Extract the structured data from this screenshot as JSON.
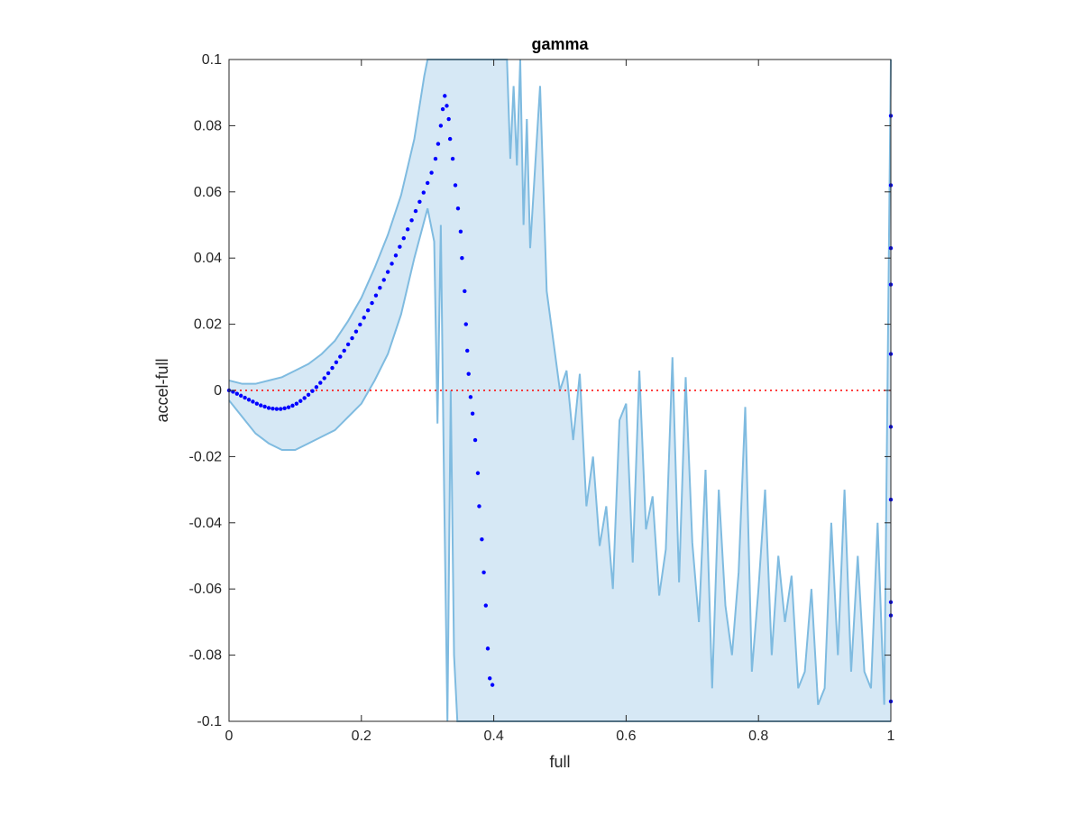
{
  "chart_data": {
    "type": "scatter",
    "title": "gamma",
    "xlabel": "full",
    "ylabel": "accel-full",
    "xlim": [
      0,
      1
    ],
    "ylim": [
      -0.1,
      0.1
    ],
    "x_ticks": [
      0,
      0.2,
      0.4,
      0.6,
      0.8,
      1
    ],
    "x_tick_labels": [
      "0",
      "0.2",
      "0.4",
      "0.6",
      "0.8",
      "1"
    ],
    "y_ticks": [
      -0.1,
      -0.08,
      -0.06,
      -0.04,
      -0.02,
      0,
      0.02,
      0.04,
      0.06,
      0.08,
      0.1
    ],
    "y_tick_labels": [
      "-0.1",
      "-0.08",
      "-0.06",
      "-0.04",
      "-0.02",
      "0",
      "0.02",
      "0.04",
      "0.06",
      "0.08",
      "0.1"
    ],
    "grid": false,
    "reference_line": {
      "y": 0,
      "style": "dotted",
      "color": "#ff0000"
    },
    "colors": {
      "points": "#0000ff",
      "band_line": "#7fbbe0",
      "band_fill": "#d6e8f5"
    },
    "mean_points": [
      [
        0.0,
        0.0
      ],
      [
        0.006,
        -0.0004
      ],
      [
        0.012,
        -0.001
      ],
      [
        0.018,
        -0.0016
      ],
      [
        0.024,
        -0.0022
      ],
      [
        0.03,
        -0.0028
      ],
      [
        0.036,
        -0.0034
      ],
      [
        0.042,
        -0.004
      ],
      [
        0.048,
        -0.0045
      ],
      [
        0.054,
        -0.0049
      ],
      [
        0.06,
        -0.0053
      ],
      [
        0.066,
        -0.0055
      ],
      [
        0.072,
        -0.0056
      ],
      [
        0.078,
        -0.0056
      ],
      [
        0.084,
        -0.0054
      ],
      [
        0.09,
        -0.0051
      ],
      [
        0.096,
        -0.0046
      ],
      [
        0.102,
        -0.004
      ],
      [
        0.108,
        -0.0032
      ],
      [
        0.114,
        -0.0023
      ],
      [
        0.12,
        -0.0013
      ],
      [
        0.126,
        -0.0002
      ],
      [
        0.132,
        0.001
      ],
      [
        0.138,
        0.0023
      ],
      [
        0.144,
        0.0037
      ],
      [
        0.15,
        0.0052
      ],
      [
        0.156,
        0.0068
      ],
      [
        0.162,
        0.0085
      ],
      [
        0.168,
        0.0102
      ],
      [
        0.174,
        0.012
      ],
      [
        0.18,
        0.0139
      ],
      [
        0.186,
        0.0158
      ],
      [
        0.192,
        0.0178
      ],
      [
        0.198,
        0.0199
      ],
      [
        0.204,
        0.022
      ],
      [
        0.21,
        0.0242
      ],
      [
        0.216,
        0.0264
      ],
      [
        0.222,
        0.0287
      ],
      [
        0.228,
        0.031
      ],
      [
        0.234,
        0.0334
      ],
      [
        0.24,
        0.0358
      ],
      [
        0.246,
        0.0383
      ],
      [
        0.252,
        0.0408
      ],
      [
        0.258,
        0.0434
      ],
      [
        0.264,
        0.046
      ],
      [
        0.27,
        0.0487
      ],
      [
        0.276,
        0.0514
      ],
      [
        0.282,
        0.0542
      ],
      [
        0.288,
        0.057
      ],
      [
        0.294,
        0.0598
      ],
      [
        0.3,
        0.0627
      ],
      [
        0.306,
        0.0658
      ],
      [
        0.312,
        0.07
      ],
      [
        0.316,
        0.0745
      ],
      [
        0.32,
        0.08
      ],
      [
        0.323,
        0.085
      ],
      [
        0.326,
        0.089
      ],
      [
        0.329,
        0.086
      ],
      [
        0.332,
        0.082
      ],
      [
        0.334,
        0.076
      ],
      [
        0.338,
        0.07
      ],
      [
        0.342,
        0.062
      ],
      [
        0.346,
        0.055
      ],
      [
        0.35,
        0.048
      ],
      [
        0.352,
        0.04
      ],
      [
        0.356,
        0.03
      ],
      [
        0.358,
        0.02
      ],
      [
        0.36,
        0.012
      ],
      [
        0.362,
        0.005
      ],
      [
        0.365,
        -0.002
      ],
      [
        0.368,
        -0.007
      ],
      [
        0.372,
        -0.015
      ],
      [
        0.376,
        -0.025
      ],
      [
        0.378,
        -0.035
      ],
      [
        0.382,
        -0.045
      ],
      [
        0.385,
        -0.055
      ],
      [
        0.388,
        -0.065
      ],
      [
        0.391,
        -0.078
      ],
      [
        0.394,
        -0.087
      ],
      [
        0.398,
        -0.089
      ],
      [
        1.0,
        0.083
      ],
      [
        1.0,
        0.062
      ],
      [
        1.0,
        0.043
      ],
      [
        1.0,
        0.032
      ],
      [
        1.0,
        0.011
      ],
      [
        1.0,
        -0.011
      ],
      [
        1.0,
        -0.033
      ],
      [
        1.0,
        -0.064
      ],
      [
        1.0,
        -0.068
      ],
      [
        1.0,
        -0.094
      ]
    ],
    "band_upper": [
      [
        0.0,
        0.003
      ],
      [
        0.02,
        0.002
      ],
      [
        0.04,
        0.002
      ],
      [
        0.06,
        0.003
      ],
      [
        0.08,
        0.004
      ],
      [
        0.1,
        0.006
      ],
      [
        0.12,
        0.008
      ],
      [
        0.14,
        0.011
      ],
      [
        0.16,
        0.015
      ],
      [
        0.18,
        0.021
      ],
      [
        0.2,
        0.028
      ],
      [
        0.22,
        0.037
      ],
      [
        0.24,
        0.047
      ],
      [
        0.26,
        0.059
      ],
      [
        0.28,
        0.076
      ],
      [
        0.295,
        0.095
      ],
      [
        0.3,
        0.1
      ],
      [
        0.42,
        0.1
      ],
      [
        0.425,
        0.07
      ],
      [
        0.43,
        0.092
      ],
      [
        0.435,
        0.068
      ],
      [
        0.44,
        0.1
      ],
      [
        0.445,
        0.05
      ],
      [
        0.45,
        0.082
      ],
      [
        0.455,
        0.043
      ],
      [
        0.47,
        0.092
      ],
      [
        0.48,
        0.03
      ],
      [
        0.49,
        0.015
      ],
      [
        0.5,
        0.0
      ],
      [
        0.51,
        0.006
      ],
      [
        0.52,
        -0.015
      ],
      [
        0.53,
        0.005
      ],
      [
        0.54,
        -0.035
      ],
      [
        0.55,
        -0.02
      ],
      [
        0.56,
        -0.047
      ],
      [
        0.57,
        -0.035
      ],
      [
        0.58,
        -0.06
      ],
      [
        0.59,
        -0.009
      ],
      [
        0.6,
        -0.004
      ],
      [
        0.61,
        -0.052
      ],
      [
        0.62,
        0.006
      ],
      [
        0.63,
        -0.042
      ],
      [
        0.64,
        -0.032
      ],
      [
        0.65,
        -0.062
      ],
      [
        0.66,
        -0.048
      ],
      [
        0.67,
        0.01
      ],
      [
        0.68,
        -0.058
      ],
      [
        0.69,
        0.004
      ],
      [
        0.7,
        -0.046
      ],
      [
        0.71,
        -0.07
      ],
      [
        0.72,
        -0.024
      ],
      [
        0.73,
        -0.09
      ],
      [
        0.74,
        -0.03
      ],
      [
        0.75,
        -0.065
      ],
      [
        0.76,
        -0.08
      ],
      [
        0.77,
        -0.055
      ],
      [
        0.78,
        -0.005
      ],
      [
        0.79,
        -0.085
      ],
      [
        0.8,
        -0.06
      ],
      [
        0.81,
        -0.03
      ],
      [
        0.82,
        -0.08
      ],
      [
        0.83,
        -0.05
      ],
      [
        0.84,
        -0.07
      ],
      [
        0.85,
        -0.056
      ],
      [
        0.86,
        -0.09
      ],
      [
        0.87,
        -0.085
      ],
      [
        0.88,
        -0.06
      ],
      [
        0.89,
        -0.095
      ],
      [
        0.9,
        -0.09
      ],
      [
        0.91,
        -0.04
      ],
      [
        0.92,
        -0.08
      ],
      [
        0.93,
        -0.03
      ],
      [
        0.94,
        -0.085
      ],
      [
        0.95,
        -0.05
      ],
      [
        0.96,
        -0.085
      ],
      [
        0.97,
        -0.09
      ],
      [
        0.98,
        -0.04
      ],
      [
        0.99,
        -0.095
      ],
      [
        1.0,
        0.1
      ]
    ],
    "band_lower": [
      [
        0.0,
        -0.003
      ],
      [
        0.02,
        -0.008
      ],
      [
        0.04,
        -0.013
      ],
      [
        0.06,
        -0.016
      ],
      [
        0.08,
        -0.018
      ],
      [
        0.1,
        -0.018
      ],
      [
        0.12,
        -0.016
      ],
      [
        0.14,
        -0.014
      ],
      [
        0.16,
        -0.012
      ],
      [
        0.18,
        -0.008
      ],
      [
        0.2,
        -0.004
      ],
      [
        0.22,
        0.003
      ],
      [
        0.24,
        0.011
      ],
      [
        0.26,
        0.023
      ],
      [
        0.28,
        0.04
      ],
      [
        0.3,
        0.055
      ],
      [
        0.31,
        0.045
      ],
      [
        0.315,
        -0.01
      ],
      [
        0.32,
        0.05
      ],
      [
        0.325,
        -0.03
      ],
      [
        0.33,
        -0.1
      ],
      [
        0.335,
        0.0
      ],
      [
        0.34,
        -0.08
      ],
      [
        0.345,
        -0.1
      ],
      [
        0.35,
        -0.1
      ],
      [
        1.0,
        -0.1
      ]
    ]
  }
}
